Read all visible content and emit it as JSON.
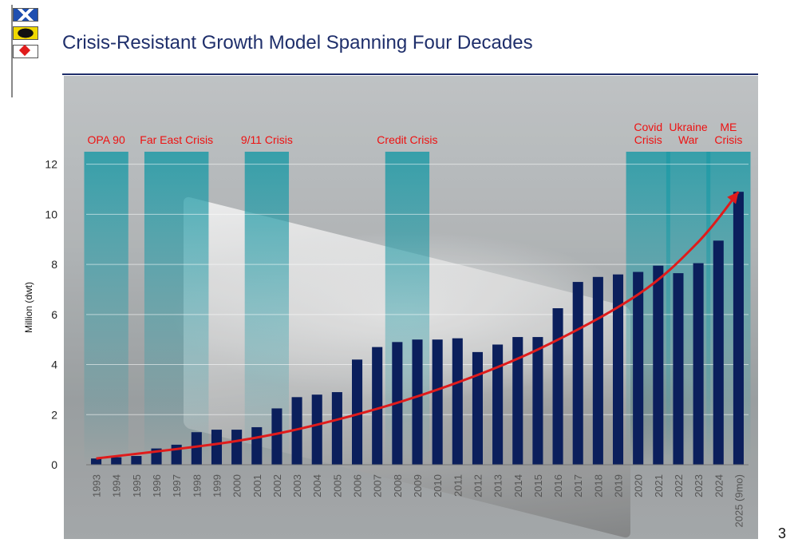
{
  "slide": {
    "title": "Crisis-Resistant Growth Model Spanning Four Decades",
    "page_number": "3"
  },
  "colors": {
    "bar": "#0b1f5c",
    "trend": "#e01b1b",
    "crisis_band": "#1f9aa6",
    "title": "#1f2f6b",
    "crisis_label": "#ee1111"
  },
  "chart_data": {
    "type": "bar",
    "title": "",
    "xlabel": "",
    "ylabel": "Million (dwt)",
    "ylim": [
      0,
      12.5
    ],
    "yticks": [
      0,
      2,
      4,
      6,
      8,
      10,
      12
    ],
    "grid": true,
    "categories": [
      "1993",
      "1994",
      "1995",
      "1996",
      "1997",
      "1998",
      "1999",
      "2000",
      "2001",
      "2002",
      "2003",
      "2004",
      "2005",
      "2006",
      "2007",
      "2008",
      "2009",
      "2010",
      "2011",
      "2012",
      "2013",
      "2014",
      "2015",
      "2016",
      "2017",
      "2018",
      "2019",
      "2020",
      "2021",
      "2022",
      "2023",
      "2024",
      "2025 (9mo)"
    ],
    "values": [
      0.25,
      0.3,
      0.35,
      0.65,
      0.8,
      1.3,
      1.4,
      1.4,
      1.5,
      2.25,
      2.7,
      2.8,
      2.9,
      4.2,
      4.7,
      4.9,
      5.0,
      5.0,
      5.05,
      4.5,
      4.8,
      5.1,
      5.1,
      6.25,
      7.3,
      7.5,
      7.6,
      7.7,
      7.95,
      7.65,
      8.05,
      8.95,
      10.9
    ],
    "trend": {
      "type": "exponential",
      "x": [
        "1993",
        "2000",
        "2005",
        "2010",
        "2015",
        "2020",
        "2023",
        "2025 (9mo)"
      ],
      "values": [
        0.25,
        0.95,
        1.8,
        3.0,
        4.6,
        6.8,
        8.9,
        10.9
      ]
    },
    "crisis_periods": [
      {
        "label": "OPA 90",
        "start": "1993",
        "end": "1994"
      },
      {
        "label": "Far East Crisis",
        "start": "1996",
        "end": "1998"
      },
      {
        "label": "9/11 Crisis",
        "start": "2001",
        "end": "2002"
      },
      {
        "label": "Credit Crisis",
        "start": "2008",
        "end": "2009"
      },
      {
        "label": "Covid\nCrisis",
        "start": "2020",
        "end": "2021"
      },
      {
        "label": "Ukraine\nWar",
        "start": "2022",
        "end": "2023"
      },
      {
        "label": "ME\nCrisis",
        "start": "2024",
        "end": "2025 (9mo)"
      }
    ]
  }
}
